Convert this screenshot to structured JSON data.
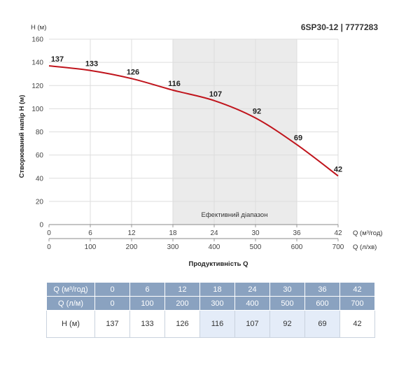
{
  "chart_data": {
    "type": "line",
    "title": "6SP30-12 | 7777283",
    "ylabel": "Створюваний напір H (м)",
    "yunit": "H (м)",
    "xlabel": "Продуктивність Q",
    "x_unit_top": "Q (м³/год)",
    "x_unit_bottom": "Q (л/хв)",
    "x_ticks_top": [
      "0",
      "6",
      "12",
      "18",
      "24",
      "30",
      "36",
      "42"
    ],
    "x_ticks_bottom": [
      "0",
      "100",
      "200",
      "300",
      "400",
      "500",
      "600",
      "700"
    ],
    "y_ticks": [
      "0",
      "20",
      "40",
      "60",
      "80",
      "100",
      "120",
      "140",
      "160"
    ],
    "xlim": [
      0,
      42
    ],
    "ylim": [
      0,
      160
    ],
    "x": [
      0,
      6,
      12,
      18,
      24,
      30,
      36,
      42
    ],
    "y": [
      137,
      133,
      126,
      116,
      107,
      92,
      69,
      42
    ],
    "data_labels": [
      "137",
      "133",
      "126",
      "116",
      "107",
      "92",
      "69",
      "42"
    ],
    "efficient_range": [
      18,
      36
    ],
    "efficient_label": "Ефективний діапазон",
    "line_color": "#c0141c",
    "shade_color": "#ebebeb",
    "grid": true
  },
  "table": {
    "rows": [
      {
        "label": "Q (м³/год)",
        "values": [
          "0",
          "6",
          "12",
          "18",
          "24",
          "30",
          "36",
          "42"
        ]
      },
      {
        "label": "Q (л/м)",
        "values": [
          "0",
          "100",
          "200",
          "300",
          "400",
          "500",
          "600",
          "700"
        ]
      },
      {
        "label": "H (м)",
        "values": [
          "137",
          "133",
          "126",
          "116",
          "107",
          "92",
          "69",
          "42"
        ]
      }
    ],
    "highlight_columns": [
      3,
      4,
      5,
      6
    ]
  }
}
